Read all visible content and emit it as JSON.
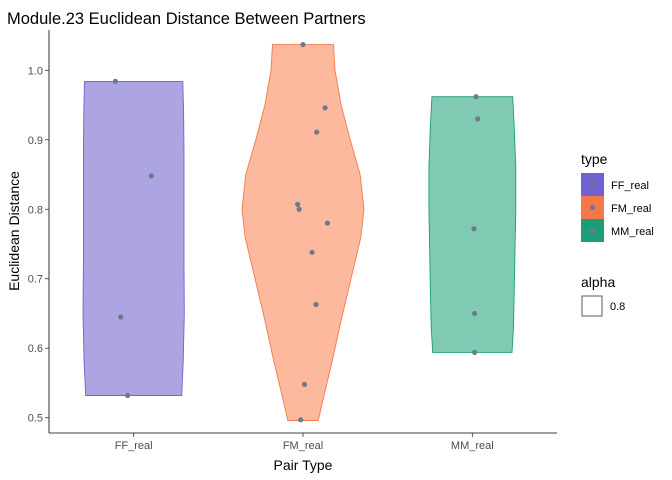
{
  "chart_data": {
    "type": "violin",
    "title": "Module.23 Euclidean Distance Between Partners",
    "xlabel": "Pair Type",
    "ylabel": "Euclidean Distance",
    "categories": [
      "FF_real",
      "FM_real",
      "MM_real"
    ],
    "ylim": [
      0.478,
      1.058
    ],
    "yticks": [
      "0.5",
      "0.6",
      "0.7",
      "0.8",
      "0.9",
      "1.0"
    ],
    "grid": false,
    "legend_position": "right",
    "point_color": "#6e7a8a",
    "series": [
      {
        "name": "FF_real",
        "fill": "#ada4e2",
        "stroke": "#7062d0",
        "density": [
          [
            0.532,
            0.63
          ],
          [
            0.58,
            0.65
          ],
          [
            0.65,
            0.665
          ],
          [
            0.72,
            0.66
          ],
          [
            0.8,
            0.66
          ],
          [
            0.88,
            0.66
          ],
          [
            0.94,
            0.655
          ],
          [
            0.984,
            0.645
          ]
        ],
        "points": [
          {
            "y": 0.984,
            "jitter": -0.24
          },
          {
            "y": 0.848,
            "jitter": 0.23
          },
          {
            "y": 0.645,
            "jitter": -0.17
          },
          {
            "y": 0.532,
            "jitter": -0.08
          }
        ]
      },
      {
        "name": "FM_real",
        "fill": "#fcb99d",
        "stroke": "#f5784b",
        "density": [
          [
            0.496,
            0.2
          ],
          [
            0.53,
            0.27
          ],
          [
            0.58,
            0.38
          ],
          [
            0.64,
            0.5
          ],
          [
            0.7,
            0.63
          ],
          [
            0.76,
            0.76
          ],
          [
            0.8,
            0.8
          ],
          [
            0.85,
            0.75
          ],
          [
            0.9,
            0.62
          ],
          [
            0.95,
            0.5
          ],
          [
            1.0,
            0.42
          ],
          [
            1.037,
            0.4
          ]
        ],
        "points": [
          {
            "y": 1.037,
            "jitter": 0.0
          },
          {
            "y": 0.946,
            "jitter": 0.29
          },
          {
            "y": 0.911,
            "jitter": 0.18
          },
          {
            "y": 0.807,
            "jitter": -0.07
          },
          {
            "y": 0.8,
            "jitter": -0.05
          },
          {
            "y": 0.78,
            "jitter": 0.32
          },
          {
            "y": 0.738,
            "jitter": 0.12
          },
          {
            "y": 0.663,
            "jitter": 0.17
          },
          {
            "y": 0.548,
            "jitter": 0.02
          },
          {
            "y": 0.497,
            "jitter": -0.03
          }
        ]
      },
      {
        "name": "MM_real",
        "fill": "#80cab4",
        "stroke": "#1b9e77",
        "density": [
          [
            0.594,
            0.52
          ],
          [
            0.63,
            0.54
          ],
          [
            0.68,
            0.55
          ],
          [
            0.74,
            0.56
          ],
          [
            0.8,
            0.57
          ],
          [
            0.86,
            0.57
          ],
          [
            0.92,
            0.55
          ],
          [
            0.962,
            0.53
          ]
        ],
        "points": [
          {
            "y": 0.962,
            "jitter": 0.05
          },
          {
            "y": 0.93,
            "jitter": 0.07
          },
          {
            "y": 0.772,
            "jitter": 0.02
          },
          {
            "y": 0.65,
            "jitter": 0.03
          },
          {
            "y": 0.594,
            "jitter": 0.03
          }
        ]
      }
    ],
    "legend": {
      "type_title": "type",
      "type_items": [
        "FF_real",
        "FM_real",
        "MM_real"
      ],
      "alpha_title": "alpha",
      "alpha_value": "0.8"
    }
  }
}
